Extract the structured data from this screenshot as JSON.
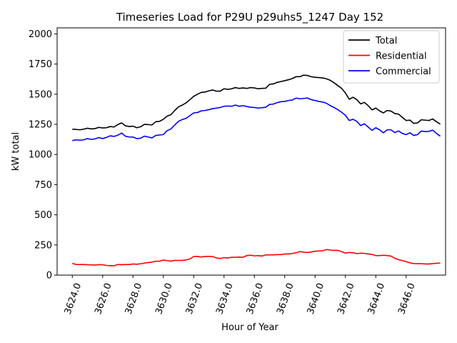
{
  "chart_data": {
    "type": "line",
    "title": "Timeseries Load for P29U p29uhs5_1247  Day 152",
    "xlabel": "Hour of Year",
    "ylabel": "kW total",
    "xlim": [
      3623.0,
      3648.6
    ],
    "ylim": [
      0,
      2050
    ],
    "x_ticks": [
      3624.0,
      3626.0,
      3628.0,
      3630.0,
      3632.0,
      3634.0,
      3636.0,
      3638.0,
      3640.0,
      3642.0,
      3644.0,
      3646.0
    ],
    "x_tick_labels": [
      "3624.0",
      "3626.0",
      "3628.0",
      "3630.0",
      "3632.0",
      "3634.0",
      "3636.0",
      "3638.0",
      "3640.0",
      "3642.0",
      "3644.0",
      "3646.0"
    ],
    "y_ticks": [
      0,
      250,
      500,
      750,
      1000,
      1250,
      1500,
      1750,
      2000
    ],
    "y_tick_labels": [
      "0",
      "250",
      "500",
      "750",
      "1000",
      "1250",
      "1500",
      "1750",
      "2000"
    ],
    "grid": false,
    "legend_position": "top-right",
    "series": [
      {
        "name": "Total",
        "color": "#000000",
        "points": [
          [
            3624.0,
            1210
          ],
          [
            3624.25,
            1208
          ],
          [
            3624.5,
            1205
          ],
          [
            3624.75,
            1210
          ],
          [
            3625.0,
            1218
          ],
          [
            3625.25,
            1212
          ],
          [
            3625.5,
            1215
          ],
          [
            3625.75,
            1225
          ],
          [
            3626.0,
            1220
          ],
          [
            3626.25,
            1222
          ],
          [
            3626.5,
            1232
          ],
          [
            3626.75,
            1228
          ],
          [
            3627.0,
            1248
          ],
          [
            3627.25,
            1262
          ],
          [
            3627.5,
            1238
          ],
          [
            3627.75,
            1232
          ],
          [
            3628.0,
            1235
          ],
          [
            3628.25,
            1222
          ],
          [
            3628.5,
            1230
          ],
          [
            3628.75,
            1250
          ],
          [
            3629.0,
            1248
          ],
          [
            3629.25,
            1245
          ],
          [
            3629.5,
            1272
          ],
          [
            3629.75,
            1275
          ],
          [
            3630.0,
            1292
          ],
          [
            3630.25,
            1318
          ],
          [
            3630.5,
            1330
          ],
          [
            3630.75,
            1365
          ],
          [
            3631.0,
            1395
          ],
          [
            3631.25,
            1410
          ],
          [
            3631.5,
            1428
          ],
          [
            3631.75,
            1455
          ],
          [
            3632.0,
            1482
          ],
          [
            3632.25,
            1500
          ],
          [
            3632.5,
            1515
          ],
          [
            3632.75,
            1518
          ],
          [
            3633.0,
            1528
          ],
          [
            3633.25,
            1535
          ],
          [
            3633.5,
            1525
          ],
          [
            3633.75,
            1525
          ],
          [
            3634.0,
            1545
          ],
          [
            3634.25,
            1540
          ],
          [
            3634.5,
            1545
          ],
          [
            3634.75,
            1555
          ],
          [
            3635.0,
            1548
          ],
          [
            3635.25,
            1552
          ],
          [
            3635.5,
            1548
          ],
          [
            3635.75,
            1555
          ],
          [
            3636.0,
            1552
          ],
          [
            3636.25,
            1545
          ],
          [
            3636.5,
            1548
          ],
          [
            3636.75,
            1550
          ],
          [
            3637.0,
            1582
          ],
          [
            3637.25,
            1585
          ],
          [
            3637.5,
            1598
          ],
          [
            3637.75,
            1605
          ],
          [
            3638.0,
            1612
          ],
          [
            3638.25,
            1620
          ],
          [
            3638.5,
            1630
          ],
          [
            3638.75,
            1645
          ],
          [
            3639.0,
            1645
          ],
          [
            3639.25,
            1658
          ],
          [
            3639.5,
            1655
          ],
          [
            3639.75,
            1645
          ],
          [
            3640.0,
            1640
          ],
          [
            3640.25,
            1638
          ],
          [
            3640.5,
            1635
          ],
          [
            3640.75,
            1628
          ],
          [
            3641.0,
            1615
          ],
          [
            3641.25,
            1595
          ],
          [
            3641.5,
            1572
          ],
          [
            3641.75,
            1548
          ],
          [
            3642.0,
            1510
          ],
          [
            3642.25,
            1458
          ],
          [
            3642.5,
            1475
          ],
          [
            3642.75,
            1455
          ],
          [
            3643.0,
            1420
          ],
          [
            3643.25,
            1432
          ],
          [
            3643.5,
            1405
          ],
          [
            3643.75,
            1370
          ],
          [
            3644.0,
            1385
          ],
          [
            3644.25,
            1362
          ],
          [
            3644.5,
            1345
          ],
          [
            3644.75,
            1365
          ],
          [
            3645.0,
            1360
          ],
          [
            3645.25,
            1340
          ],
          [
            3645.5,
            1335
          ],
          [
            3645.75,
            1308
          ],
          [
            3646.0,
            1282
          ],
          [
            3646.25,
            1285
          ],
          [
            3646.5,
            1258
          ],
          [
            3646.75,
            1262
          ],
          [
            3647.0,
            1288
          ],
          [
            3647.25,
            1285
          ],
          [
            3647.5,
            1282
          ],
          [
            3647.75,
            1295
          ],
          [
            3648.0,
            1272
          ],
          [
            3648.25,
            1252
          ]
        ]
      },
      {
        "name": "Residential",
        "color": "#ff0000",
        "points": [
          [
            3624.0,
            98
          ],
          [
            3624.25,
            88
          ],
          [
            3624.5,
            88
          ],
          [
            3624.75,
            88
          ],
          [
            3625.0,
            86
          ],
          [
            3625.25,
            85
          ],
          [
            3625.5,
            84
          ],
          [
            3625.75,
            86
          ],
          [
            3626.0,
            86
          ],
          [
            3626.25,
            80
          ],
          [
            3626.5,
            78
          ],
          [
            3626.75,
            78
          ],
          [
            3627.0,
            88
          ],
          [
            3627.25,
            86
          ],
          [
            3627.5,
            88
          ],
          [
            3627.75,
            88
          ],
          [
            3628.0,
            92
          ],
          [
            3628.25,
            90
          ],
          [
            3628.5,
            94
          ],
          [
            3628.75,
            100
          ],
          [
            3629.0,
            104
          ],
          [
            3629.25,
            108
          ],
          [
            3629.5,
            115
          ],
          [
            3629.75,
            115
          ],
          [
            3630.0,
            125
          ],
          [
            3630.25,
            120
          ],
          [
            3630.5,
            116
          ],
          [
            3630.75,
            122
          ],
          [
            3631.0,
            122
          ],
          [
            3631.25,
            122
          ],
          [
            3631.5,
            126
          ],
          [
            3631.75,
            134
          ],
          [
            3632.0,
            154
          ],
          [
            3632.25,
            155
          ],
          [
            3632.5,
            150
          ],
          [
            3632.75,
            155
          ],
          [
            3633.0,
            155
          ],
          [
            3633.25,
            154
          ],
          [
            3633.5,
            142
          ],
          [
            3633.75,
            138
          ],
          [
            3634.0,
            145
          ],
          [
            3634.25,
            142
          ],
          [
            3634.5,
            148
          ],
          [
            3634.75,
            148
          ],
          [
            3635.0,
            150
          ],
          [
            3635.25,
            148
          ],
          [
            3635.5,
            162
          ],
          [
            3635.75,
            165
          ],
          [
            3636.0,
            160
          ],
          [
            3636.25,
            162
          ],
          [
            3636.5,
            158
          ],
          [
            3636.75,
            168
          ],
          [
            3637.0,
            168
          ],
          [
            3637.25,
            168
          ],
          [
            3637.5,
            170
          ],
          [
            3637.75,
            170
          ],
          [
            3638.0,
            175
          ],
          [
            3638.25,
            175
          ],
          [
            3638.5,
            180
          ],
          [
            3638.75,
            185
          ],
          [
            3639.0,
            195
          ],
          [
            3639.25,
            190
          ],
          [
            3639.5,
            188
          ],
          [
            3639.75,
            192
          ],
          [
            3640.0,
            198
          ],
          [
            3640.25,
            200
          ],
          [
            3640.5,
            202
          ],
          [
            3640.75,
            212
          ],
          [
            3641.0,
            208
          ],
          [
            3641.25,
            205
          ],
          [
            3641.5,
            205
          ],
          [
            3641.75,
            195
          ],
          [
            3642.0,
            182
          ],
          [
            3642.25,
            188
          ],
          [
            3642.5,
            185
          ],
          [
            3642.75,
            178
          ],
          [
            3643.0,
            182
          ],
          [
            3643.25,
            180
          ],
          [
            3643.5,
            175
          ],
          [
            3643.75,
            172
          ],
          [
            3644.0,
            162
          ],
          [
            3644.25,
            162
          ],
          [
            3644.5,
            165
          ],
          [
            3644.75,
            162
          ],
          [
            3645.0,
            158
          ],
          [
            3645.25,
            140
          ],
          [
            3645.5,
            128
          ],
          [
            3645.75,
            120
          ],
          [
            3646.0,
            112
          ],
          [
            3646.25,
            102
          ],
          [
            3646.5,
            96
          ],
          [
            3646.75,
            95
          ],
          [
            3647.0,
            95
          ],
          [
            3647.25,
            92
          ],
          [
            3647.5,
            92
          ],
          [
            3647.75,
            95
          ],
          [
            3648.0,
            98
          ],
          [
            3648.25,
            100
          ]
        ]
      },
      {
        "name": "Commercial",
        "color": "#0000ff",
        "points": [
          [
            3624.0,
            1115
          ],
          [
            3624.25,
            1122
          ],
          [
            3624.5,
            1118
          ],
          [
            3624.75,
            1122
          ],
          [
            3625.0,
            1132
          ],
          [
            3625.25,
            1125
          ],
          [
            3625.5,
            1130
          ],
          [
            3625.75,
            1140
          ],
          [
            3626.0,
            1132
          ],
          [
            3626.25,
            1142
          ],
          [
            3626.5,
            1155
          ],
          [
            3626.75,
            1150
          ],
          [
            3627.0,
            1160
          ],
          [
            3627.25,
            1178
          ],
          [
            3627.5,
            1152
          ],
          [
            3627.75,
            1145
          ],
          [
            3628.0,
            1145
          ],
          [
            3628.25,
            1132
          ],
          [
            3628.5,
            1135
          ],
          [
            3628.75,
            1152
          ],
          [
            3629.0,
            1145
          ],
          [
            3629.25,
            1138
          ],
          [
            3629.5,
            1158
          ],
          [
            3629.75,
            1162
          ],
          [
            3630.0,
            1165
          ],
          [
            3630.25,
            1198
          ],
          [
            3630.5,
            1212
          ],
          [
            3630.75,
            1245
          ],
          [
            3631.0,
            1275
          ],
          [
            3631.25,
            1290
          ],
          [
            3631.5,
            1300
          ],
          [
            3631.75,
            1322
          ],
          [
            3632.0,
            1345
          ],
          [
            3632.25,
            1348
          ],
          [
            3632.5,
            1362
          ],
          [
            3632.75,
            1365
          ],
          [
            3633.0,
            1372
          ],
          [
            3633.25,
            1380
          ],
          [
            3633.5,
            1385
          ],
          [
            3633.75,
            1390
          ],
          [
            3634.0,
            1400
          ],
          [
            3634.25,
            1402
          ],
          [
            3634.5,
            1400
          ],
          [
            3634.75,
            1410
          ],
          [
            3635.0,
            1400
          ],
          [
            3635.25,
            1405
          ],
          [
            3635.5,
            1398
          ],
          [
            3635.75,
            1392
          ],
          [
            3636.0,
            1390
          ],
          [
            3636.25,
            1385
          ],
          [
            3636.5,
            1388
          ],
          [
            3636.75,
            1392
          ],
          [
            3637.0,
            1415
          ],
          [
            3637.25,
            1418
          ],
          [
            3637.5,
            1430
          ],
          [
            3637.75,
            1438
          ],
          [
            3638.0,
            1440
          ],
          [
            3638.25,
            1448
          ],
          [
            3638.5,
            1452
          ],
          [
            3638.75,
            1468
          ],
          [
            3639.0,
            1462
          ],
          [
            3639.25,
            1465
          ],
          [
            3639.5,
            1468
          ],
          [
            3639.75,
            1455
          ],
          [
            3640.0,
            1448
          ],
          [
            3640.25,
            1440
          ],
          [
            3640.5,
            1435
          ],
          [
            3640.75,
            1425
          ],
          [
            3641.0,
            1405
          ],
          [
            3641.25,
            1390
          ],
          [
            3641.5,
            1372
          ],
          [
            3641.75,
            1350
          ],
          [
            3642.0,
            1325
          ],
          [
            3642.25,
            1282
          ],
          [
            3642.5,
            1292
          ],
          [
            3642.75,
            1275
          ],
          [
            3643.0,
            1240
          ],
          [
            3643.25,
            1255
          ],
          [
            3643.5,
            1228
          ],
          [
            3643.75,
            1200
          ],
          [
            3644.0,
            1222
          ],
          [
            3644.25,
            1205
          ],
          [
            3644.5,
            1180
          ],
          [
            3644.75,
            1205
          ],
          [
            3645.0,
            1205
          ],
          [
            3645.25,
            1182
          ],
          [
            3645.5,
            1195
          ],
          [
            3645.75,
            1175
          ],
          [
            3646.0,
            1165
          ],
          [
            3646.25,
            1180
          ],
          [
            3646.5,
            1158
          ],
          [
            3646.75,
            1165
          ],
          [
            3647.0,
            1195
          ],
          [
            3647.25,
            1190
          ],
          [
            3647.5,
            1192
          ],
          [
            3647.75,
            1202
          ],
          [
            3648.0,
            1175
          ],
          [
            3648.25,
            1152
          ]
        ]
      }
    ]
  }
}
